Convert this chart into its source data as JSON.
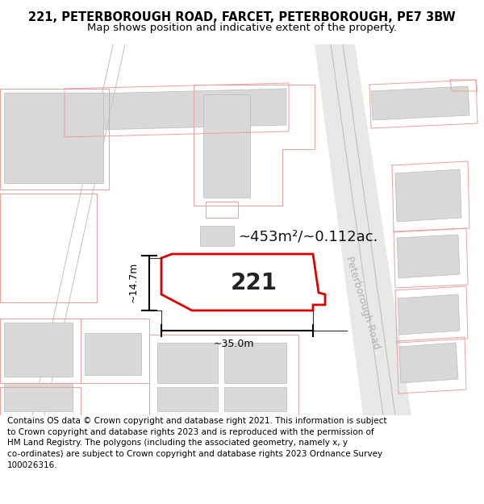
{
  "title_line1": "221, PETERBOROUGH ROAD, FARCET, PETERBOROUGH, PE7 3BW",
  "title_line2": "Map shows position and indicative extent of the property.",
  "footer_text": "Contains OS data © Crown copyright and database right 2021. This information is subject to Crown copyright and database rights 2023 and is reproduced with the permission of HM Land Registry. The polygons (including the associated geometry, namely x, y co-ordinates) are subject to Crown copyright and database rights 2023 Ordnance Survey 100026316.",
  "plot_outline_color": "#dd0000",
  "plot_fill": "#ffffff",
  "plot_label": "221",
  "area_label": "~453m²/~0.112ac.",
  "dim_h_label": "~14.7m",
  "dim_w_label": "~35.0m",
  "road_label": "Peterborough Road",
  "building_fill": "#d8d8d8",
  "pink_line": "#e8a0a0",
  "road_fill": "#e0e0e0",
  "road_line": "#c8c8c8",
  "title_fontsize": 10.5,
  "subtitle_fontsize": 9.5,
  "footer_fontsize": 7.5,
  "plot_label_fontsize": 20,
  "area_label_fontsize": 13,
  "dim_fontsize": 9
}
